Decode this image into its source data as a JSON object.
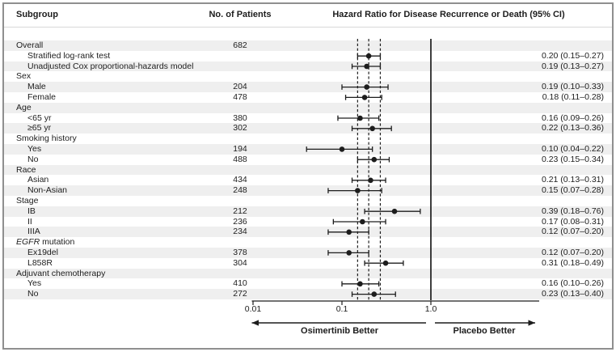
{
  "header": {
    "subgroup_label": "Subgroup",
    "patients_label": "No. of Patients",
    "hazard_label": "Hazard Ratio for Disease Recurrence or Death (95% CI)"
  },
  "colors": {
    "stripe": "#efefef",
    "ink": "#1d1d1d",
    "border": "#8f8f8f"
  },
  "chart_data": {
    "type": "scatter",
    "variant": "forest-plot",
    "title": "Hazard Ratio for Disease Recurrence or Death (95% CI)",
    "xscale": "log",
    "xlim": [
      0.01,
      16
    ],
    "xtick_values": [
      0.01,
      0.1,
      1.0
    ],
    "xtick_labels": [
      "0.01",
      "0.1",
      "1.0"
    ],
    "reference_lines_dashed": [
      0.15,
      0.2,
      0.27
    ],
    "reference_line_solid": 1.0,
    "arrow_left_label": "Osimertinib Better",
    "arrow_right_label": "Placebo Better",
    "rows": [
      {
        "label": "Overall",
        "indent": 0,
        "patients": "682"
      },
      {
        "label": "Stratified log-rank test",
        "indent": 1,
        "hr": 0.2,
        "lo": 0.15,
        "hi": 0.27,
        "hr_text": "0.20 (0.15–0.27)"
      },
      {
        "label": "Unadjusted Cox proportional-hazards model",
        "indent": 1,
        "hr": 0.19,
        "lo": 0.13,
        "hi": 0.27,
        "hr_text": "0.19 (0.13–0.27)"
      },
      {
        "label": "Sex",
        "indent": 0
      },
      {
        "label": "Male",
        "indent": 1,
        "patients": "204",
        "hr": 0.19,
        "lo": 0.1,
        "hi": 0.33,
        "hr_text": "0.19 (0.10–0.33)"
      },
      {
        "label": "Female",
        "indent": 1,
        "patients": "478",
        "hr": 0.18,
        "lo": 0.11,
        "hi": 0.28,
        "hr_text": "0.18 (0.11–0.28)"
      },
      {
        "label": "Age",
        "indent": 0
      },
      {
        "label": "<65 yr",
        "indent": 1,
        "patients": "380",
        "hr": 0.16,
        "lo": 0.09,
        "hi": 0.26,
        "hr_text": "0.16 (0.09–0.26)"
      },
      {
        "label": "≥65 yr",
        "indent": 1,
        "patients": "302",
        "hr": 0.22,
        "lo": 0.13,
        "hi": 0.36,
        "hr_text": "0.22 (0.13–0.36)"
      },
      {
        "label": "Smoking history",
        "indent": 0
      },
      {
        "label": "Yes",
        "indent": 1,
        "patients": "194",
        "hr": 0.1,
        "lo": 0.04,
        "hi": 0.22,
        "hr_text": "0.10 (0.04–0.22)"
      },
      {
        "label": "No",
        "indent": 1,
        "patients": "488",
        "hr": 0.23,
        "lo": 0.15,
        "hi": 0.34,
        "hr_text": "0.23 (0.15–0.34)"
      },
      {
        "label": "Race",
        "indent": 0
      },
      {
        "label": "Asian",
        "indent": 1,
        "patients": "434",
        "hr": 0.21,
        "lo": 0.13,
        "hi": 0.31,
        "hr_text": "0.21 (0.13–0.31)"
      },
      {
        "label": "Non-Asian",
        "indent": 1,
        "patients": "248",
        "hr": 0.15,
        "lo": 0.07,
        "hi": 0.28,
        "hr_text": "0.15 (0.07–0.28)"
      },
      {
        "label": "Stage",
        "indent": 0
      },
      {
        "label": "IB",
        "indent": 1,
        "patients": "212",
        "hr": 0.39,
        "lo": 0.18,
        "hi": 0.76,
        "hr_text": "0.39 (0.18–0.76)"
      },
      {
        "label": "II",
        "indent": 1,
        "patients": "236",
        "hr": 0.17,
        "lo": 0.08,
        "hi": 0.31,
        "hr_text": "0.17 (0.08–0.31)"
      },
      {
        "label": "IIIA",
        "indent": 1,
        "patients": "234",
        "hr": 0.12,
        "lo": 0.07,
        "hi": 0.2,
        "hr_text": "0.12 (0.07–0.20)"
      },
      {
        "label": "EGFR mutation",
        "italic_prefix": "EGFR",
        "indent": 0
      },
      {
        "label": "Ex19del",
        "indent": 1,
        "patients": "378",
        "hr": 0.12,
        "lo": 0.07,
        "hi": 0.2,
        "hr_text": "0.12 (0.07–0.20)"
      },
      {
        "label": "L858R",
        "indent": 1,
        "patients": "304",
        "hr": 0.31,
        "lo": 0.18,
        "hi": 0.49,
        "hr_text": "0.31 (0.18–0.49)"
      },
      {
        "label": "Adjuvant chemotherapy",
        "indent": 0
      },
      {
        "label": "Yes",
        "indent": 1,
        "patients": "410",
        "hr": 0.16,
        "lo": 0.1,
        "hi": 0.26,
        "hr_text": "0.16 (0.10–0.26)"
      },
      {
        "label": "No",
        "indent": 1,
        "patients": "272",
        "hr": 0.23,
        "lo": 0.13,
        "hi": 0.4,
        "hr_text": "0.23 (0.13–0.40)"
      }
    ]
  }
}
